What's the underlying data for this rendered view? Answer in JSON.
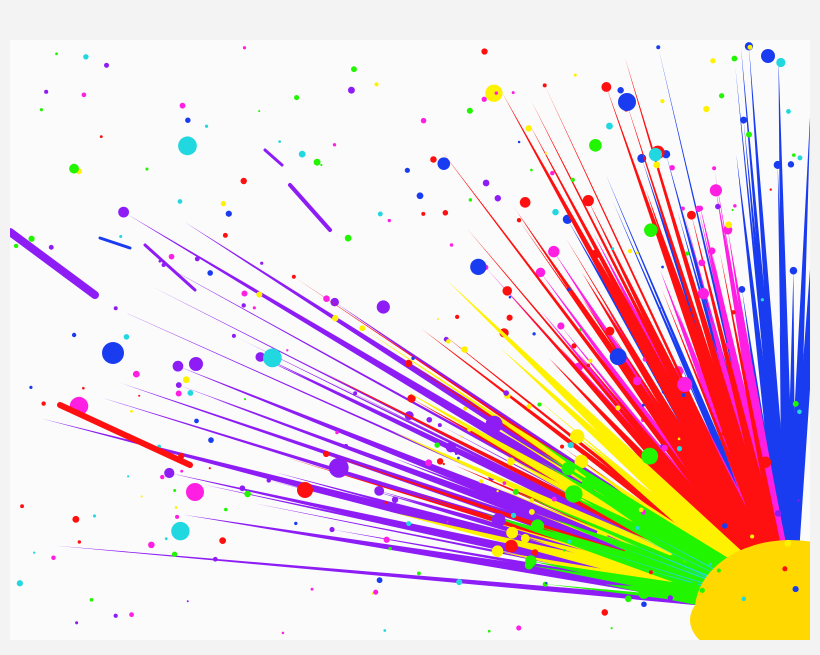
{
  "image": {
    "subject": "paint-splatter",
    "colors": {
      "background": "#f3f3f3",
      "canvas": "#ffffff",
      "purple": "#8e1df5",
      "blue": "#1a3cf0",
      "magenta": "#ff1fe3",
      "red": "#ff1010",
      "yellow": "#fff200",
      "gold": "#ffd800",
      "green": "#21f500",
      "cyan": "#22d8e0"
    }
  }
}
